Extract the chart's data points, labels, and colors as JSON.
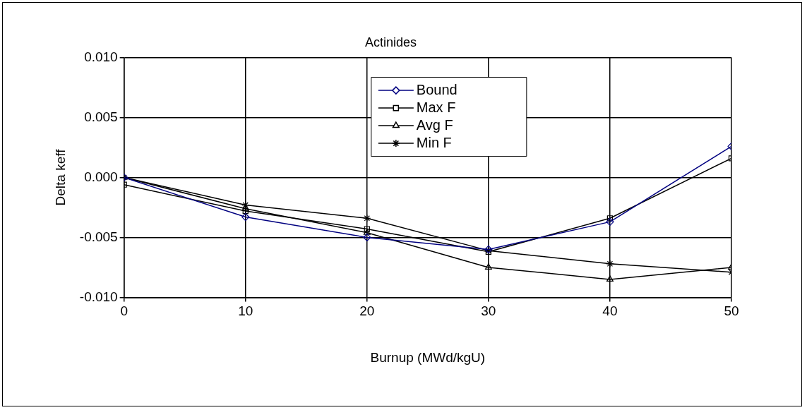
{
  "chart_data": {
    "type": "line",
    "title": "Actinides",
    "xlabel": "Burnup (MWd/kgU)",
    "ylabel": "Delta keff",
    "x": [
      0,
      10,
      20,
      30,
      40,
      50
    ],
    "series": [
      {
        "name": "Bound",
        "color": "#000080",
        "marker": "diamond",
        "values": [
          0,
          -0.0033,
          -0.005,
          -0.006,
          -0.0037,
          0.0026
        ]
      },
      {
        "name": "Max F",
        "color": "#000000",
        "marker": "square",
        "values": [
          -0.0006,
          -0.0028,
          -0.0043,
          -0.0062,
          -0.0034,
          0.0016
        ]
      },
      {
        "name": "Avg F",
        "color": "#000000",
        "marker": "triangle",
        "values": [
          0,
          -0.0026,
          -0.0046,
          -0.0075,
          -0.0085,
          -0.0075
        ]
      },
      {
        "name": "Min F",
        "color": "#000000",
        "marker": "cross",
        "values": [
          0,
          -0.0023,
          -0.0034,
          -0.0061,
          -0.0072,
          -0.0079
        ]
      }
    ],
    "xlim": [
      0,
      50
    ],
    "xticks": [
      0,
      10,
      20,
      30,
      40,
      50
    ],
    "ylim": [
      -0.01,
      0.01
    ],
    "yticks": [
      {
        "value": -0.01,
        "label": "-0.010"
      },
      {
        "value": -0.005,
        "label": "-0.005"
      },
      {
        "value": 0,
        "label": "0.000"
      },
      {
        "value": 0.005,
        "label": "0.005"
      },
      {
        "value": 0.01,
        "label": "0.010"
      }
    ],
    "grid": true,
    "legend": "top",
    "line_style": "solid"
  }
}
